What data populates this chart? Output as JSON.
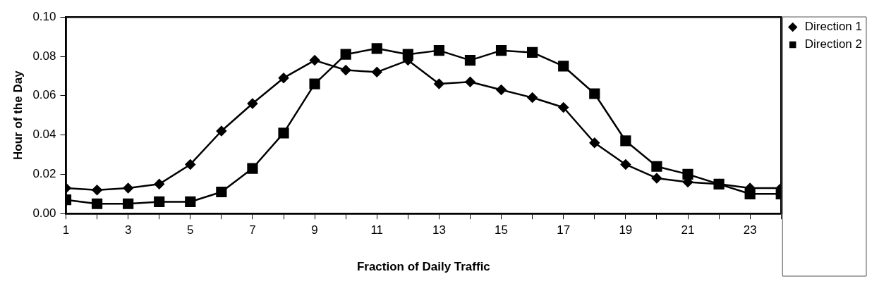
{
  "chart_data": {
    "type": "line",
    "xlabel": "Fraction of Daily Traffic",
    "ylabel": "Hour of the Day",
    "x": [
      1,
      2,
      3,
      4,
      5,
      6,
      7,
      8,
      9,
      10,
      11,
      12,
      13,
      14,
      15,
      16,
      17,
      18,
      19,
      20,
      21,
      22,
      23,
      24
    ],
    "series": [
      {
        "name": "Direction 1",
        "color": "#000000",
        "marker": "diamond",
        "values": [
          0.013,
          0.012,
          0.013,
          0.015,
          0.025,
          0.042,
          0.056,
          0.069,
          0.078,
          0.073,
          0.072,
          0.078,
          0.066,
          0.067,
          0.063,
          0.059,
          0.054,
          0.036,
          0.025,
          0.018,
          0.016,
          0.015,
          0.013,
          0.013
        ]
      },
      {
        "name": "Direction 2",
        "color": "#000000",
        "marker": "square",
        "values": [
          0.007,
          0.005,
          0.005,
          0.006,
          0.006,
          0.011,
          0.023,
          0.041,
          0.066,
          0.081,
          0.084,
          0.081,
          0.083,
          0.078,
          0.083,
          0.082,
          0.075,
          0.061,
          0.037,
          0.024,
          0.02,
          0.015,
          0.01,
          0.01
        ]
      }
    ],
    "xlim": [
      1,
      24
    ],
    "xticks": [
      1,
      {
        "value": 2,
        "label": null
      },
      3,
      {
        "value": 4,
        "label": null
      },
      5,
      {
        "value": 6,
        "label": null
      },
      7,
      {
        "value": 8,
        "label": null
      },
      9,
      {
        "value": 10,
        "label": null
      },
      11,
      {
        "value": 12,
        "label": null
      },
      13,
      {
        "value": 14,
        "label": null
      },
      15,
      {
        "value": 16,
        "label": null
      },
      17,
      {
        "value": 18,
        "label": null
      },
      19,
      {
        "value": 20,
        "label": null
      },
      21,
      {
        "value": 22,
        "label": null
      },
      23,
      {
        "value": 24,
        "label": null
      }
    ],
    "ylim": [
      0,
      0.1
    ],
    "yticks": [
      {
        "value": 0,
        "label": "0.00"
      },
      {
        "value": 0.02,
        "label": "0.02"
      },
      {
        "value": 0.04,
        "label": "0.04"
      },
      {
        "value": 0.06,
        "label": "0.06"
      },
      {
        "value": 0.08,
        "label": "0.08"
      },
      {
        "value": 0.1,
        "label": "0.10"
      }
    ],
    "grid": false,
    "legend": "right",
    "line_style": "solid"
  }
}
